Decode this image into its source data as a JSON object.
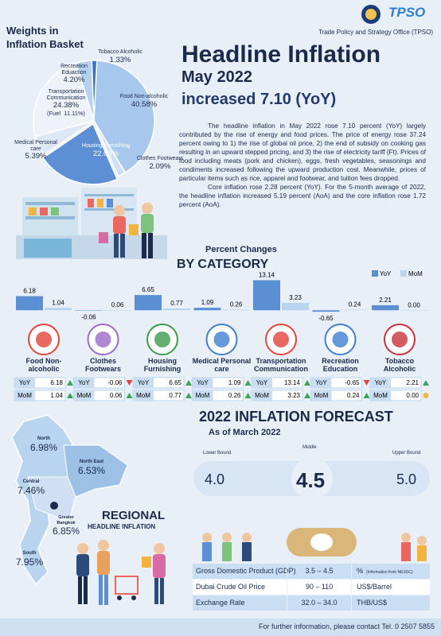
{
  "header": {
    "logo": "TPSO",
    "organization": "Trade Policy and Strategy Office (TPSO)"
  },
  "headline": {
    "title": "Headline Inflation",
    "month": "May 2022",
    "change": "increased 7.10 (YoY)",
    "paragraphs": [
      "The headline inflation in May 2022 rose 7.10 percent (YoY) largely contributed by the rise of energy and food prices. The price of energy rose 37.24 percent owing to 1) the rise of global oil price, 2) the end of subsidy on cooking gas resulting in an upward stepped pricing, and 3) the rise of electricity tariff (Ft). Prices of food including meats (pork and chicken), eggs, fresh vegetables, seasonings and condiments increased following the upward production cost. Meanwhile, prices of particular items such as rice, apparel and footwear, and tuition fees dropped.",
      "Core inflation rose 2.28 percent (YoY). For the 5-month average of 2022, the headline inflation increased 5.19 percent (AoA) and the core inflation rose 1.72 percent (AoA)."
    ]
  },
  "chart_data": [
    {
      "type": "pie",
      "title": "Weights in Inflation Basket",
      "categories": [
        "Food Non-alcoholic",
        "Clothes Footwears",
        "Housing Furnishing",
        "Medical Personal care",
        "Transportation Communication",
        "Recreation Eduaction",
        "Tobacco Alcoholic"
      ],
      "values": [
        40.58,
        2.09,
        22.03,
        5.39,
        24.38,
        4.2,
        1.33
      ],
      "value_labels": [
        "40.58%",
        "2.09%",
        "22.03%",
        "5.39%",
        "24.38%",
        "4.20%",
        "1.33%"
      ],
      "colors": [
        "#a7c7ec",
        "#cfe0f5",
        "#5d8fd5",
        "#dde8f7",
        "#eef3fa",
        "#b6d0ef",
        "#3b6fc3"
      ],
      "annotations": [
        "(Fuel  11.11%)"
      ]
    },
    {
      "type": "bar",
      "title": "Percent Changes",
      "subtitle": "BY CATEGORY",
      "categories": [
        "Food Non-alcoholic",
        "Clothes Footwears",
        "Housing Furnishing",
        "Medical Personal care",
        "Transportation Communication",
        "Recreation Education",
        "Tobacco Alcoholic"
      ],
      "series": [
        {
          "name": "YoY",
          "color": "#5b8fd3",
          "values": [
            6.18,
            -0.06,
            6.65,
            1.09,
            13.14,
            -0.65,
            2.21
          ]
        },
        {
          "name": "MoM",
          "color": "#b9d4ee",
          "values": [
            1.04,
            0.06,
            0.77,
            0.26,
            3.23,
            0.24,
            0
          ],
          "value_labels": [
            "1.04",
            "0.06",
            "0.77",
            "0.26",
            "3.23",
            "0.24",
            "0.00"
          ]
        }
      ],
      "ylim": [
        -2,
        14
      ],
      "legend": "top-right"
    }
  ],
  "forecast": {
    "year": "2022",
    "title": "INFLATION FORECAST",
    "as_of": "As of March 2022",
    "bounds": [
      {
        "label": "Lower Bound",
        "value": "4.0"
      },
      {
        "label": "Middle",
        "value": "4.5"
      },
      {
        "label": "Upper Bound",
        "value": "5.0"
      }
    ]
  },
  "regional": {
    "title": "REGIONAL",
    "subtitle": "HEADLINE INFLATION",
    "regions": [
      {
        "name": "North",
        "value": "6.98%"
      },
      {
        "name": "North East",
        "value": "6.53%"
      },
      {
        "name": "Central",
        "value": "7.46%"
      },
      {
        "name": "Greater Bangkok",
        "value": "6.85%"
      },
      {
        "name": "South",
        "value": "7.95%"
      }
    ]
  },
  "assumptions": {
    "rows": [
      {
        "item": "Gross Domestic Product (GDP)",
        "range": "3.5 – 4.5",
        "unit": "%",
        "note": "(Information from NESDC)"
      },
      {
        "item": "Dubai Crude Oil Price",
        "range": "90 – 110",
        "unit": "US$/Barrel"
      },
      {
        "item": "Exchange Rate",
        "range": "32.0 – 34.0",
        "unit": "THB/US$"
      }
    ]
  },
  "footer": "For further information, please contact Tel. 0 2507 5855"
}
